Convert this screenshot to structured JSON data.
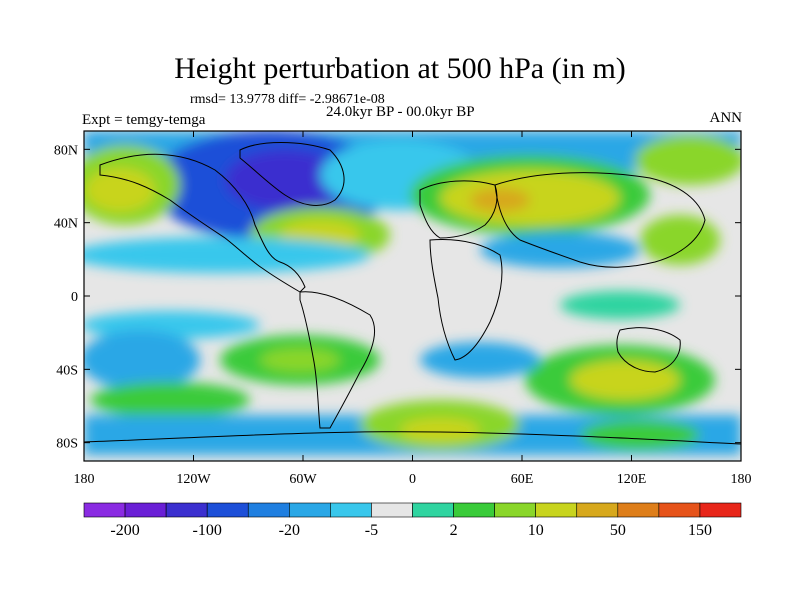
{
  "title": "Height perturbation at 500 hPa (in m)",
  "stats": "rmsd= 13.9778 diff= -2.98671e-08",
  "period": "24.0kyr BP - 00.0kyr BP",
  "experiment": "Expt = temgy-temga",
  "season": "ANN",
  "lat_labels": [
    "80N",
    "40N",
    "0",
    "40S",
    "80S"
  ],
  "lon_labels": [
    "180",
    "120W",
    "60W",
    "0",
    "60E",
    "120E",
    "180"
  ],
  "colorbar": {
    "labels": [
      "-200",
      "-100",
      "-20",
      "-5",
      "2",
      "10",
      "50",
      "150"
    ],
    "colors": [
      "#8a2be2",
      "#6a1fd6",
      "#3b2fcf",
      "#1d4fd8",
      "#1f7fe0",
      "#2aa7e6",
      "#39c7ec",
      "#e6e6e6",
      "#2fd4a0",
      "#3acb3a",
      "#8ad62a",
      "#c8d41e",
      "#d7a81c",
      "#de7e1a",
      "#e6531a",
      "#e8261a"
    ]
  },
  "fields": {
    "neg_blue": [
      "#1d4fd8",
      "#3b2fcf"
    ],
    "mid_blue": "#2aa7e6",
    "light_blue": "#39c7ec",
    "neutral": "#e6e6e6",
    "teal": "#2fd4a0",
    "green": "#3acb3a",
    "yellow_green": "#8ad62a",
    "olive": "#c8d41e"
  }
}
